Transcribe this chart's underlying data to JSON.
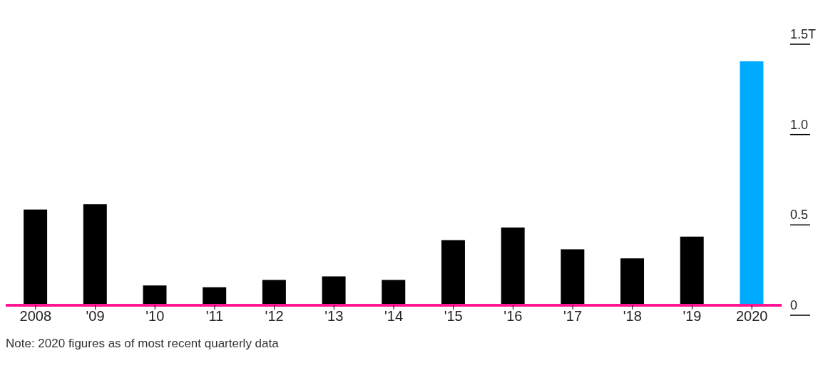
{
  "chart_data": {
    "type": "bar",
    "categories": [
      "2008",
      "'09",
      "'10",
      "'11",
      "'12",
      "'13",
      "'14",
      "'15",
      "'16",
      "'17",
      "'18",
      "'19",
      "2020"
    ],
    "values": [
      0.53,
      0.56,
      0.11,
      0.1,
      0.14,
      0.16,
      0.14,
      0.36,
      0.43,
      0.31,
      0.26,
      0.38,
      1.35
    ],
    "colors": [
      "#000000",
      "#000000",
      "#000000",
      "#000000",
      "#000000",
      "#000000",
      "#000000",
      "#000000",
      "#000000",
      "#000000",
      "#000000",
      "#000000",
      "#00aaff"
    ],
    "ylim": [
      0,
      1.5
    ],
    "yticks": [
      0,
      0.5,
      {
        "value": 1,
        "label": "1.0"
      },
      {
        "value": 1.5,
        "label": "1.5T"
      }
    ],
    "grid": false,
    "legend": false,
    "annotations": [
      "Note: 2020 figures as of most recent quarterly data"
    ]
  }
}
